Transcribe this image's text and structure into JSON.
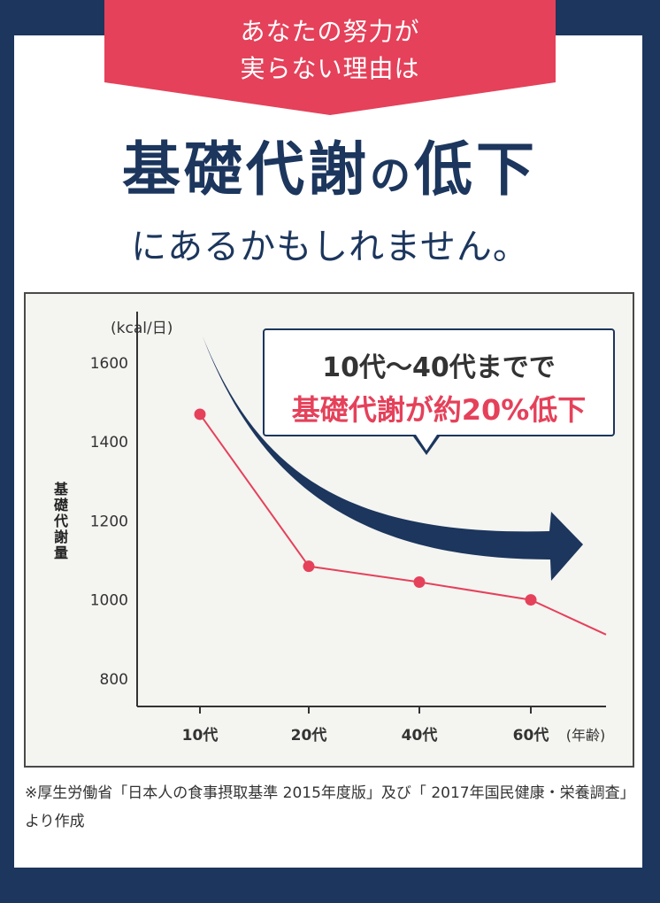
{
  "banner": {
    "line1": "あなたの努力が",
    "line2": "実らない理由は"
  },
  "headline": {
    "main": "基礎代謝",
    "particle": "の",
    "end": "低下"
  },
  "subheadline": "にあるかもしれません。",
  "callout": {
    "line1": "10代〜40代までで",
    "line2": "基礎代謝が約20%低下"
  },
  "colors": {
    "navy": "#1c365d",
    "accent": "#e5415a",
    "chart_bg": "#f4f4f1"
  },
  "chart_data": {
    "type": "line",
    "ylabel": "基礎代謝量",
    "yunit": "(kcal/日)",
    "xunit": "(年齢)",
    "yticks": [
      1600,
      1400,
      1200,
      1000,
      800
    ],
    "ylim": [
      730,
      1730
    ],
    "categories": [
      "10代",
      "20代",
      "40代",
      "60代"
    ],
    "series": [
      {
        "values": [
          1470,
          1085,
          1045,
          1000
        ],
        "trend_end": 912
      }
    ],
    "grid": false
  },
  "footnote": "※厚生労働省「日本人の食事摂取基準 2015年度版」及び「 2017年国民健康・栄養調査」より作成"
}
